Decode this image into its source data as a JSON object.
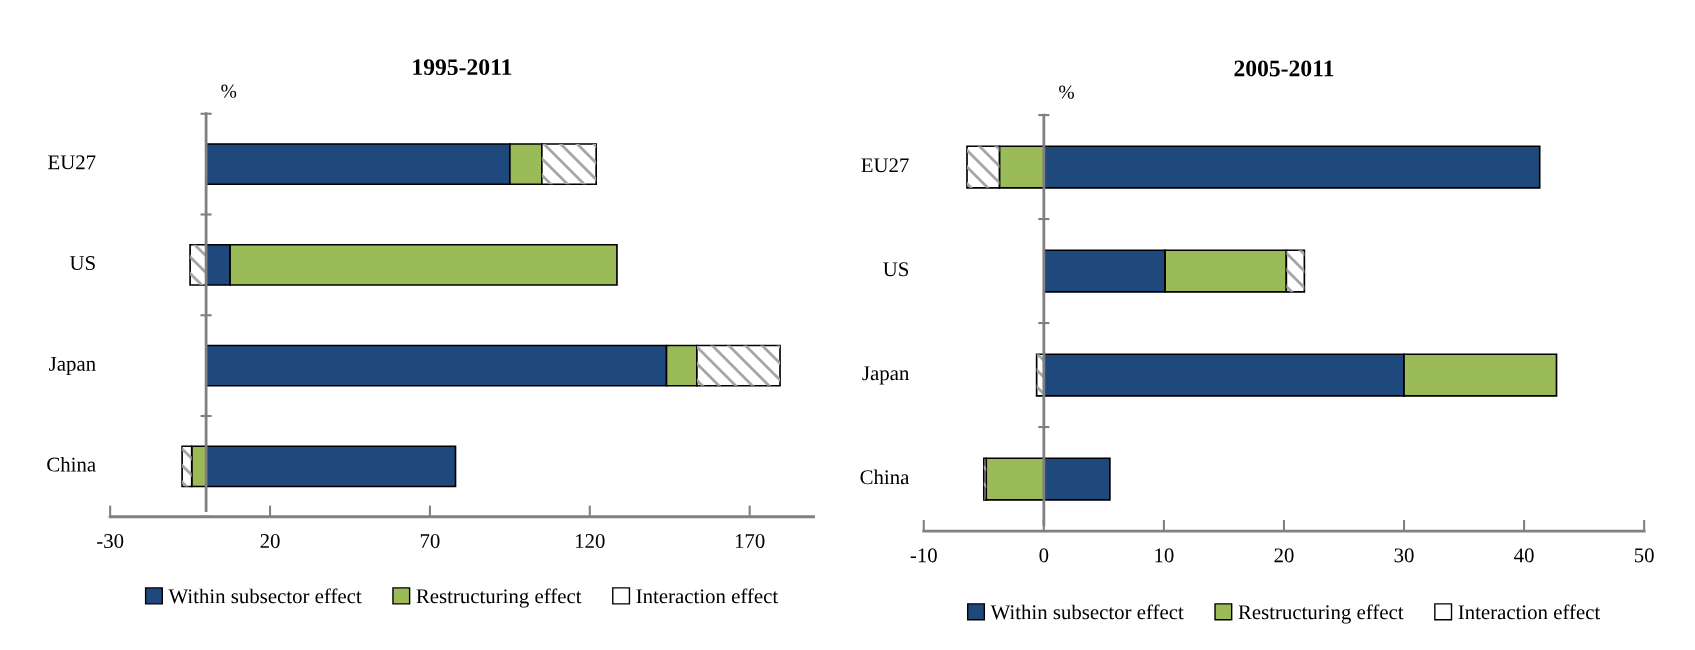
{
  "chart_data": [
    {
      "type": "bar",
      "orientation": "horizontal",
      "stacked": true,
      "title": "1995-2011",
      "xlabel": "%",
      "categories": [
        "EU27",
        "US",
        "Japan",
        "China"
      ],
      "series": [
        {
          "name": "Within subsector effect",
          "color": "#1f497d",
          "values": [
            95,
            7.5,
            144,
            78
          ]
        },
        {
          "name": "Restructuring effect",
          "color": "#9bbb59",
          "values": [
            10,
            121,
            9.5,
            -4.5
          ]
        },
        {
          "name": "Interaction effect",
          "color": "#ffffff",
          "values": [
            17,
            -5,
            26,
            -3
          ]
        }
      ],
      "xlim": [
        -30,
        190
      ],
      "xticks": [
        -30,
        20,
        70,
        120,
        170
      ],
      "legend": "bottom"
    },
    {
      "type": "bar",
      "orientation": "horizontal",
      "stacked": true,
      "title": "2005-2011",
      "xlabel": "%",
      "categories": [
        "EU27",
        "US",
        "Japan",
        "China"
      ],
      "series": [
        {
          "name": "Within subsector effect",
          "color": "#1f497d",
          "values": [
            41.3,
            10.1,
            30,
            5.5
          ]
        },
        {
          "name": "Restructuring effect",
          "color": "#9bbb59",
          "values": [
            -3.7,
            10.1,
            12.7,
            -4.8
          ]
        },
        {
          "name": "Interaction effect",
          "color": "#ffffff",
          "values": [
            -2.7,
            1.5,
            -0.6,
            -0.2
          ]
        }
      ],
      "xlim": [
        -10,
        50
      ],
      "xticks": [
        -10,
        0,
        10,
        20,
        30,
        40,
        50
      ],
      "legend": "bottom"
    }
  ]
}
